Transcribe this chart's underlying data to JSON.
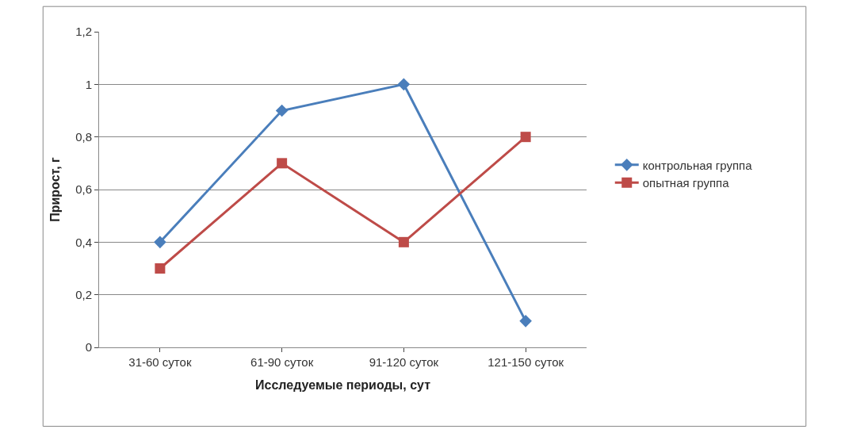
{
  "chart_data": {
    "type": "line",
    "xlabel": "Исследуемые периоды, сут",
    "ylabel": "Прирост, г",
    "categories": [
      "31-60 суток",
      "61-90 суток",
      "91-120 суток",
      "121-150 суток"
    ],
    "series": [
      {
        "name": "контрольная группа",
        "color": "#4a7ebb",
        "marker": "diamond",
        "values": [
          0.4,
          0.9,
          1.0,
          0.1
        ]
      },
      {
        "name": "опытная группа",
        "color": "#be4b48",
        "marker": "square",
        "values": [
          0.3,
          0.7,
          0.4,
          0.8
        ]
      }
    ],
    "ylim": [
      0,
      1.2
    ],
    "yticks": [
      0,
      {
        "value": 0.2,
        "label": "0,2"
      },
      {
        "value": 0.4,
        "label": "0,4"
      },
      {
        "value": 0.6,
        "label": "0,6"
      },
      {
        "value": 0.8,
        "label": "0,8"
      },
      1,
      {
        "value": 1.2,
        "label": "1,2"
      }
    ],
    "grid": "y",
    "legend": "right",
    "line_style": "solid"
  }
}
